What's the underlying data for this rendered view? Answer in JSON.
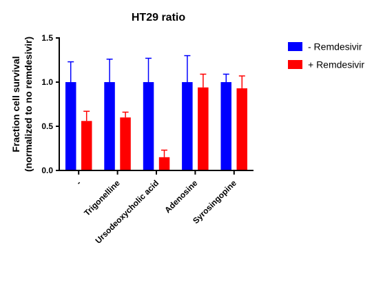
{
  "chart_data": {
    "type": "bar",
    "title": "HT29 ratio",
    "ylabel_line1": "Fraction cell survival",
    "ylabel_line2": "(normalized to no remdesivir)",
    "xlabel": "",
    "ylim": [
      0,
      1.5
    ],
    "yticks": [
      "0.0",
      "0.5",
      "1.0",
      "1.5"
    ],
    "categories": [
      "-",
      "Trigonelline",
      "Ursodeoxycholic acid",
      "Adenosine",
      "Syrosingopine"
    ],
    "series": [
      {
        "name": "- Remdesivir",
        "color": "#0000ff",
        "values": [
          1.0,
          1.0,
          1.0,
          1.0,
          1.0
        ],
        "errors": [
          0.23,
          0.26,
          0.27,
          0.3,
          0.09
        ]
      },
      {
        "name": "+ Remdesivir",
        "color": "#ff0000",
        "values": [
          0.56,
          0.6,
          0.15,
          0.94,
          0.93
        ],
        "errors": [
          0.11,
          0.06,
          0.08,
          0.15,
          0.14
        ]
      }
    ],
    "legend_position": "top-right",
    "grid": false,
    "error_bars": "upper only"
  }
}
